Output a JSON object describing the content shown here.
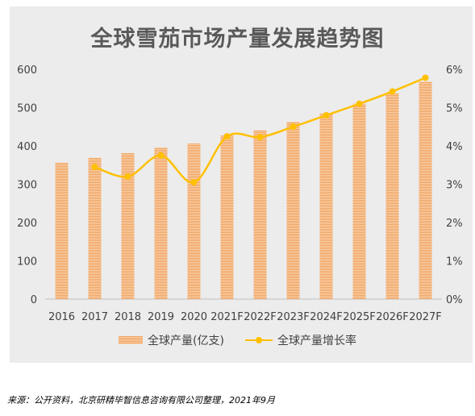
{
  "title": "全球雪茄市场产量发展趋势图",
  "source": "来源：公开资料，北京研精毕智信息咨询有限公司整理，2021年9月",
  "colors": {
    "bar": "#f0a15e",
    "bar_light": "#f8d2ad",
    "line": "#ffc000",
    "panel": "#ececec",
    "text": "#595959"
  },
  "chart_data": {
    "type": "bar",
    "categories": [
      "2016",
      "2017",
      "2018",
      "2019",
      "2020",
      "2021F",
      "2022F",
      "2023F",
      "2024F",
      "2025F",
      "2026F",
      "2027F"
    ],
    "series": [
      {
        "name": "全球产量(亿支)",
        "type": "bar",
        "axis": "left",
        "values": [
          356,
          369,
          381,
          396,
          406,
          427,
          441,
          463,
          485,
          510,
          537,
          568
        ]
      },
      {
        "name": "全球产量增长率",
        "type": "line",
        "axis": "right",
        "unit": "%",
        "values": [
          null,
          3.45,
          3.2,
          3.75,
          3.05,
          4.25,
          4.23,
          4.5,
          4.8,
          5.1,
          5.42,
          5.78
        ]
      }
    ],
    "y_left": {
      "ylim": [
        0,
        600
      ],
      "ticks": [
        "0",
        "100",
        "200",
        "300",
        "400",
        "500",
        "600"
      ]
    },
    "y_right": {
      "ylim": [
        0,
        6
      ],
      "ticks": [
        "0%",
        "1%",
        "2%",
        "3%",
        "4%",
        "5%",
        "6%"
      ]
    },
    "grid": false,
    "legend": "bottom"
  }
}
